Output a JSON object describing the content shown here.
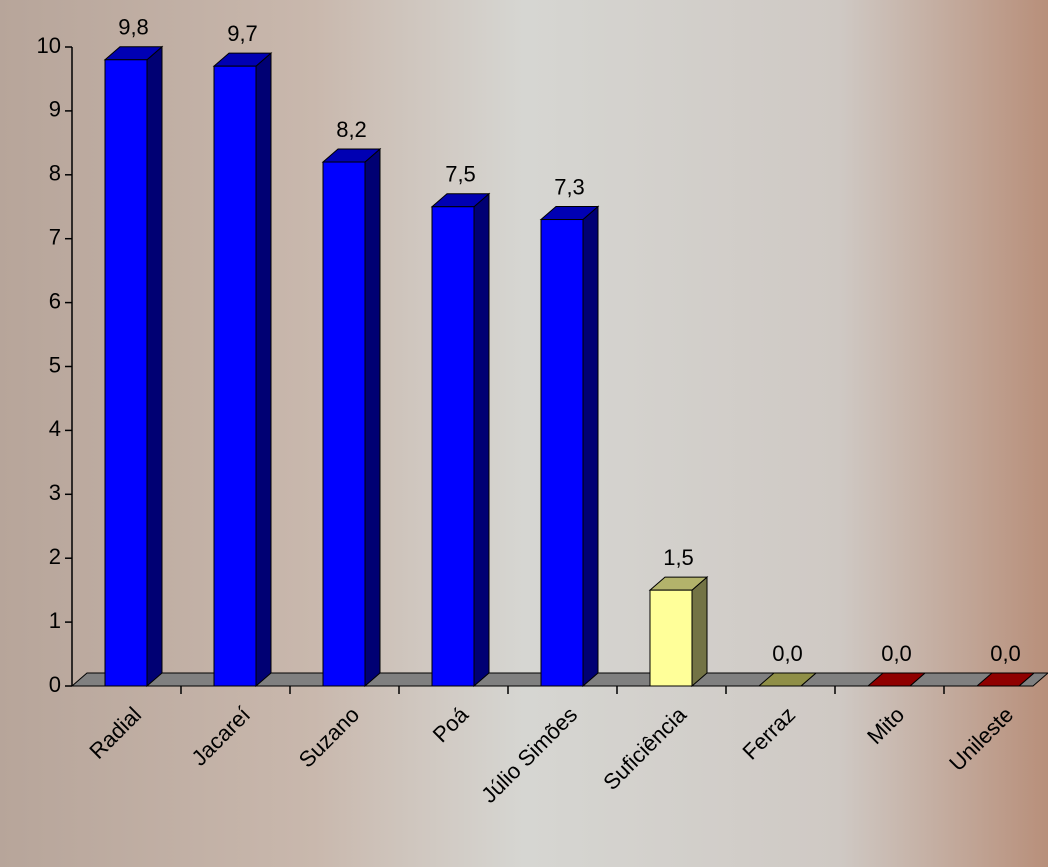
{
  "chart_data": {
    "type": "bar3d",
    "categories": [
      "Radial",
      "Jacareí",
      "Suzano",
      "Poá",
      "Júlio Simões",
      "Suficiência",
      "Ferraz",
      "Mito",
      "Unileste"
    ],
    "values": [
      9.8,
      9.7,
      8.2,
      7.5,
      7.3,
      1.5,
      0,
      0,
      0
    ],
    "value_labels": [
      "9,8",
      "9,7",
      "8,2",
      "7,5",
      "7,3",
      "1,5",
      "0,0",
      "0,0",
      "0,0"
    ],
    "colors": [
      "#0000ff",
      "#0000ff",
      "#0000ff",
      "#0000ff",
      "#0000ff",
      "#ffff99",
      "#cccc66",
      "#cc0000",
      "#cc0000"
    ],
    "ylim": [
      0,
      10
    ],
    "yticks": [
      0,
      1,
      2,
      3,
      4,
      5,
      6,
      7,
      8,
      9,
      10
    ],
    "grid": false
  }
}
